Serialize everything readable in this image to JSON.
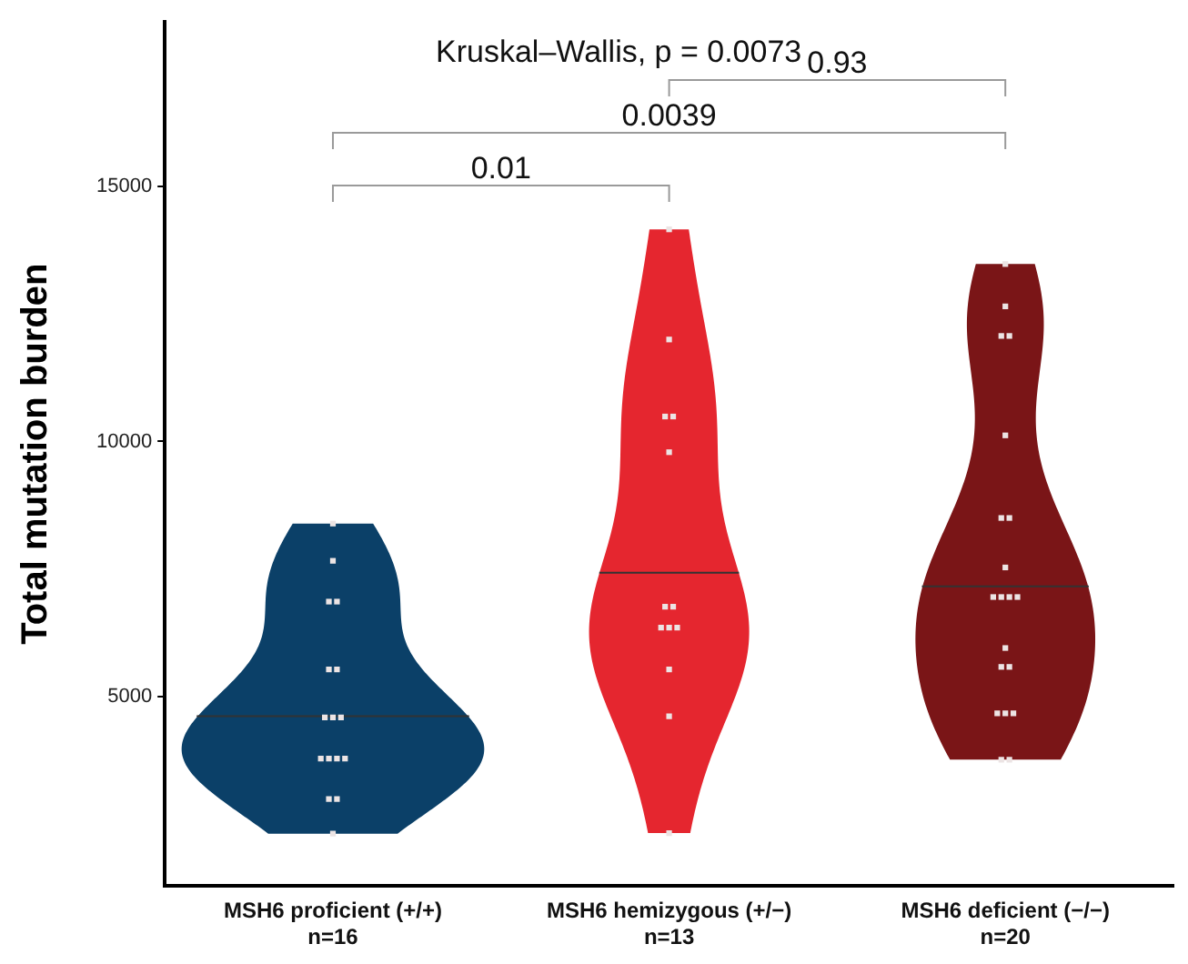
{
  "chart_data": {
    "type": "scatter",
    "ylabel": "Total mutation burden",
    "categories": [
      "MSH6 proficient (+/+)\nn=16",
      "MSH6 hemizygous (+/−)\nn=13",
      "MSH6 deficient (−/−)\nn=20"
    ],
    "ylim": [
      1280,
      18230
    ],
    "yticks": [
      5000,
      10000,
      15000
    ],
    "grid": false,
    "legend": false,
    "marker": "square",
    "series": [
      {
        "type": "scatter",
        "color": "#ece4e4",
        "x": [
          "MSH6 proficient (+/+)\nn=16",
          "MSH6 proficient (+/+)\nn=16",
          "MSH6 proficient (+/+)\nn=16",
          "MSH6 proficient (+/+)\nn=16",
          "MSH6 proficient (+/+)\nn=16",
          "MSH6 proficient (+/+)\nn=16",
          "MSH6 proficient (+/+)\nn=16",
          "MSH6 proficient (+/+)\nn=16",
          "MSH6 proficient (+/+)\nn=16",
          "MSH6 proficient (+/+)\nn=16",
          "MSH6 proficient (+/+)\nn=16",
          "MSH6 proficient (+/+)\nn=16",
          "MSH6 proficient (+/+)\nn=16",
          "MSH6 proficient (+/+)\nn=16",
          "MSH6 proficient (+/+)\nn=16",
          "MSH6 proficient (+/+)\nn=16"
        ],
        "values": [
          8390,
          7660,
          6860,
          6860,
          5530,
          5530,
          4590,
          4590,
          4590,
          3780,
          3780,
          3780,
          3780,
          2990,
          2990,
          2310
        ]
      },
      {
        "type": "scatter",
        "color": "#ece4e4",
        "x": [
          "MSH6 hemizygous (+/−)\nn=13",
          "MSH6 hemizygous (+/−)\nn=13",
          "MSH6 hemizygous (+/−)\nn=13",
          "MSH6 hemizygous (+/−)\nn=13",
          "MSH6 hemizygous (+/−)\nn=13",
          "MSH6 hemizygous (+/−)\nn=13",
          "MSH6 hemizygous (+/−)\nn=13",
          "MSH6 hemizygous (+/−)\nn=13",
          "MSH6 hemizygous (+/−)\nn=13",
          "MSH6 hemizygous (+/−)\nn=13",
          "MSH6 hemizygous (+/−)\nn=13",
          "MSH6 hemizygous (+/−)\nn=13",
          "MSH6 hemizygous (+/−)\nn=13"
        ],
        "values": [
          14160,
          12000,
          10490,
          10490,
          9790,
          6760,
          6760,
          6350,
          6350,
          6350,
          5530,
          4610,
          2320
        ]
      },
      {
        "type": "scatter",
        "color": "#ece4e4",
        "x": [
          "MSH6 deficient (−/−)\nn=20",
          "MSH6 deficient (−/−)\nn=20",
          "MSH6 deficient (−/−)\nn=20",
          "MSH6 deficient (−/−)\nn=20",
          "MSH6 deficient (−/−)\nn=20",
          "MSH6 deficient (−/−)\nn=20",
          "MSH6 deficient (−/−)\nn=20",
          "MSH6 deficient (−/−)\nn=20",
          "MSH6 deficient (−/−)\nn=20",
          "MSH6 deficient (−/−)\nn=20",
          "MSH6 deficient (−/−)\nn=20",
          "MSH6 deficient (−/−)\nn=20",
          "MSH6 deficient (−/−)\nn=20",
          "MSH6 deficient (−/−)\nn=20",
          "MSH6 deficient (−/−)\nn=20",
          "MSH6 deficient (−/−)\nn=20",
          "MSH6 deficient (−/−)\nn=20",
          "MSH6 deficient (−/−)\nn=20",
          "MSH6 deficient (−/−)\nn=20",
          "MSH6 deficient (−/−)\nn=20"
        ],
        "values": [
          13480,
          12650,
          12070,
          12070,
          10120,
          8500,
          8500,
          7530,
          6950,
          6950,
          6950,
          6950,
          5950,
          5580,
          5580,
          4670,
          4670,
          4670,
          3760,
          3760
        ]
      }
    ],
    "annotations": [
      "Kruskal–Wallis, p = 0.0073",
      "0.01",
      "0.0039",
      "0.93"
    ]
  }
}
